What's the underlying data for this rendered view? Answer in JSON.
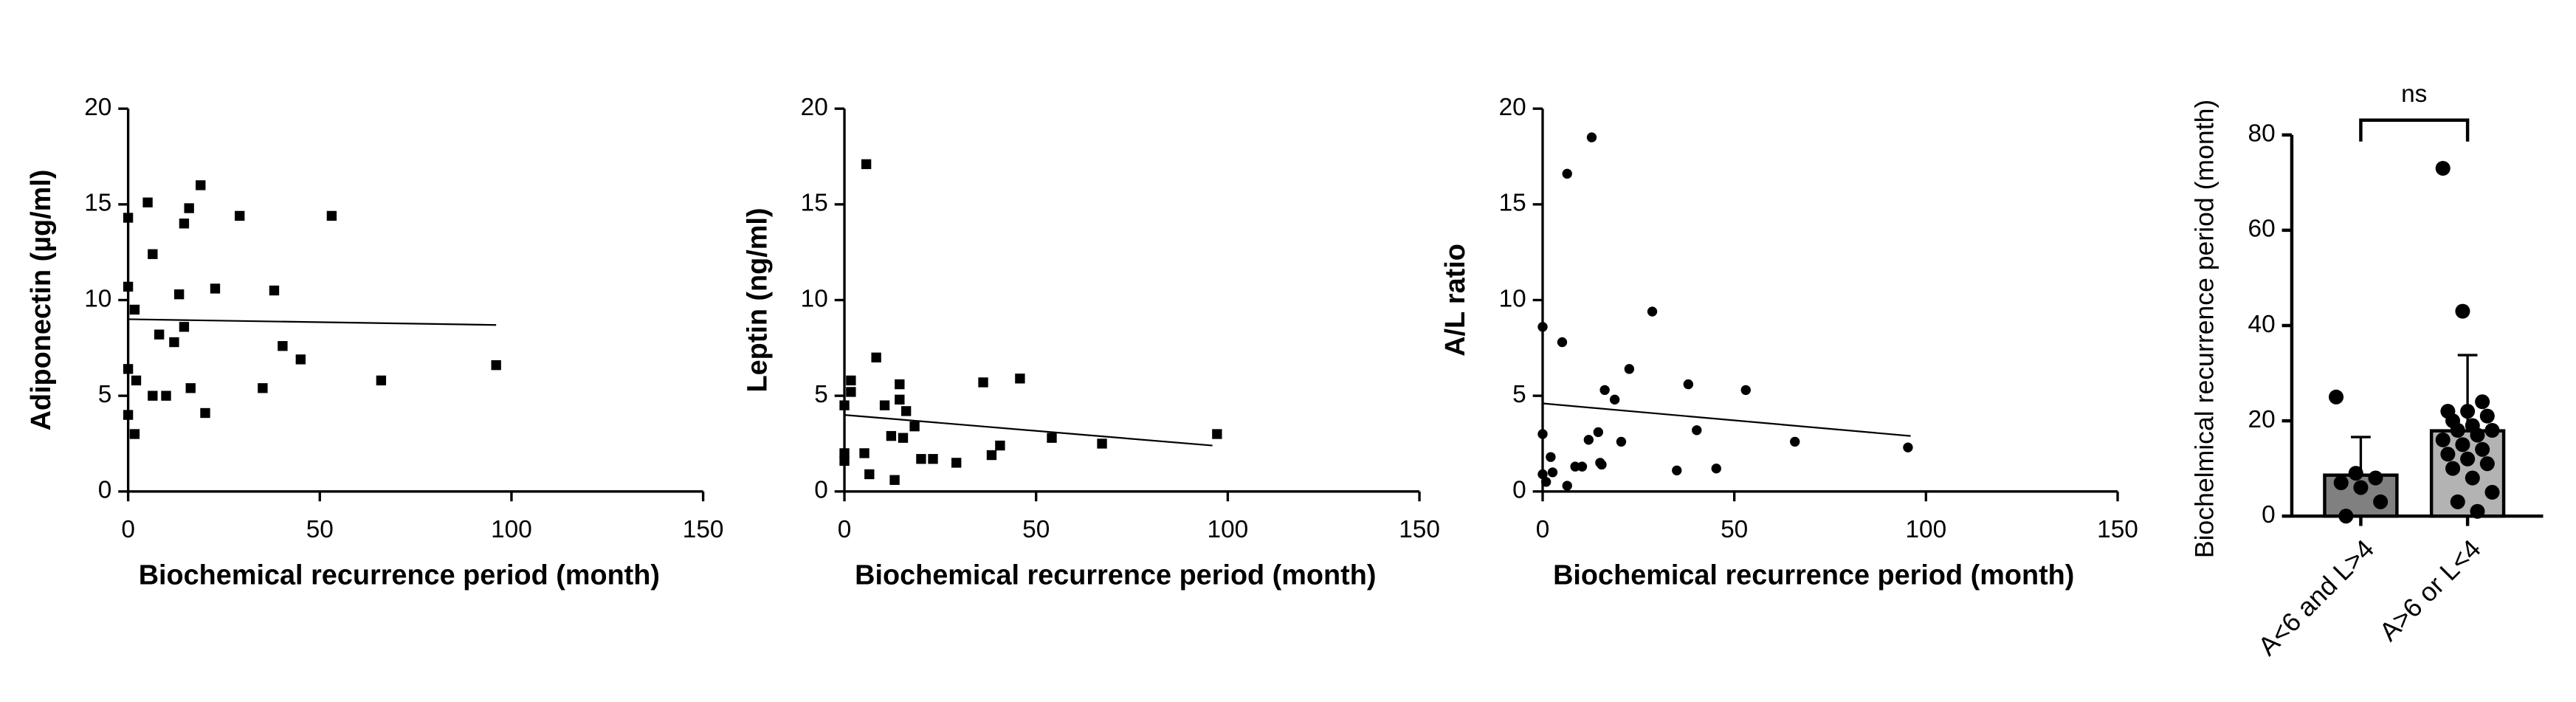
{
  "chart_data": [
    {
      "type": "scatter",
      "marker": "square",
      "color": "#000000",
      "xlabel": "Biochemical recurrence period (month)",
      "ylabel": "Adiponectin (µg/ml)",
      "x": [
        0,
        0,
        0,
        0,
        1.7,
        2.1,
        1.7,
        5.1,
        6.4,
        6.4,
        8.1,
        9.9,
        12,
        13.3,
        14.6,
        14.6,
        15.9,
        16.3,
        18.9,
        20.1,
        22.7,
        29.1,
        35.1,
        38.1,
        40.3,
        45,
        53.1,
        66,
        96
      ],
      "values": [
        14.3,
        10.7,
        6.4,
        4.0,
        9.5,
        5.8,
        3.0,
        15.1,
        12.4,
        5.0,
        8.2,
        5.0,
        7.8,
        10.3,
        8.6,
        14.0,
        14.8,
        5.4,
        16.0,
        4.1,
        10.6,
        14.4,
        5.4,
        10.5,
        7.6,
        6.9,
        14.4,
        5.8,
        6.6
      ],
      "trendline": {
        "x": [
          0,
          96
        ],
        "values": [
          9.0,
          8.7
        ]
      },
      "xlim": [
        0,
        150
      ],
      "xticks": [
        0,
        50,
        100,
        150
      ],
      "ylim": [
        0,
        20
      ],
      "yticks": [
        0,
        5,
        10,
        15,
        20
      ]
    },
    {
      "type": "scatter",
      "marker": "square",
      "color": "#000000",
      "xlabel": "Biochemical recurrence period (month)",
      "ylabel": "Leptin (ng/ml)",
      "x": [
        0,
        0,
        0,
        1.7,
        1.7,
        5.7,
        5.2,
        6.5,
        8.3,
        10.5,
        12.2,
        13.1,
        14.4,
        14.4,
        16.1,
        15.3,
        18.3,
        20,
        23.1,
        29.2,
        36.2,
        38.4,
        40.6,
        45.8,
        54.1,
        67.2,
        97.2
      ],
      "values": [
        4.5,
        2.0,
        1.6,
        5.2,
        5.8,
        17.1,
        2.0,
        0.9,
        7.0,
        4.5,
        2.9,
        0.6,
        5.6,
        4.8,
        4.2,
        2.8,
        3.4,
        1.7,
        1.7,
        1.5,
        5.7,
        1.9,
        2.4,
        5.9,
        2.8,
        2.5,
        3.0
      ],
      "trendline": {
        "x": [
          0,
          96
        ],
        "values": [
          4.0,
          2.4
        ]
      },
      "xlim": [
        0,
        150
      ],
      "xticks": [
        0,
        50,
        100,
        150
      ],
      "ylim": [
        0,
        20
      ],
      "yticks": [
        0,
        5,
        10,
        15,
        20
      ]
    },
    {
      "type": "scatter",
      "marker": "circle",
      "color": "#000000",
      "xlabel": "Biochemical recurrence period (month)",
      "ylabel": "A/L ratio",
      "x": [
        0,
        0,
        0,
        0.9,
        2.1,
        2.6,
        5.1,
        6.4,
        6.4,
        8.5,
        10.3,
        12,
        12.8,
        14.5,
        15,
        16.2,
        15.4,
        18.8,
        20.5,
        22.6,
        28.6,
        35,
        38,
        40.2,
        45.3,
        53,
        65.8,
        95.3
      ],
      "values": [
        8.6,
        3.0,
        0.9,
        0.5,
        1.8,
        1.0,
        7.8,
        16.6,
        0.3,
        1.3,
        1.3,
        2.7,
        18.5,
        3.1,
        1.5,
        5.3,
        1.4,
        4.8,
        2.6,
        6.4,
        9.4,
        1.1,
        5.6,
        3.2,
        1.2,
        5.3,
        2.6,
        2.3
      ],
      "trendline": {
        "x": [
          0,
          96
        ],
        "values": [
          4.6,
          2.9
        ]
      },
      "xlim": [
        0,
        150
      ],
      "xticks": [
        0,
        50,
        100,
        150
      ],
      "ylim": [
        0,
        20
      ],
      "yticks": [
        0,
        5,
        10,
        15,
        20
      ]
    },
    {
      "type": "bar",
      "ylabel": "Biochelmical recurrence period (month)",
      "categories": [
        "A<6 and L>4",
        "A>6 or L<4"
      ],
      "colors": [
        "#808080",
        "#b3b3b3"
      ],
      "values": [
        8.6,
        17.9
      ],
      "errors": [
        8.0,
        15.9
      ],
      "points": [
        [
          25,
          9,
          8,
          7,
          6,
          3,
          0
        ],
        [
          73,
          43,
          24,
          22,
          22,
          21,
          20,
          19,
          18,
          18,
          17,
          16,
          15,
          14,
          13,
          12,
          11,
          10,
          8,
          5,
          3,
          1
        ]
      ],
      "annotation": "ns",
      "ylim": [
        0,
        80
      ],
      "yticks": [
        0,
        20,
        40,
        60,
        80
      ]
    }
  ]
}
